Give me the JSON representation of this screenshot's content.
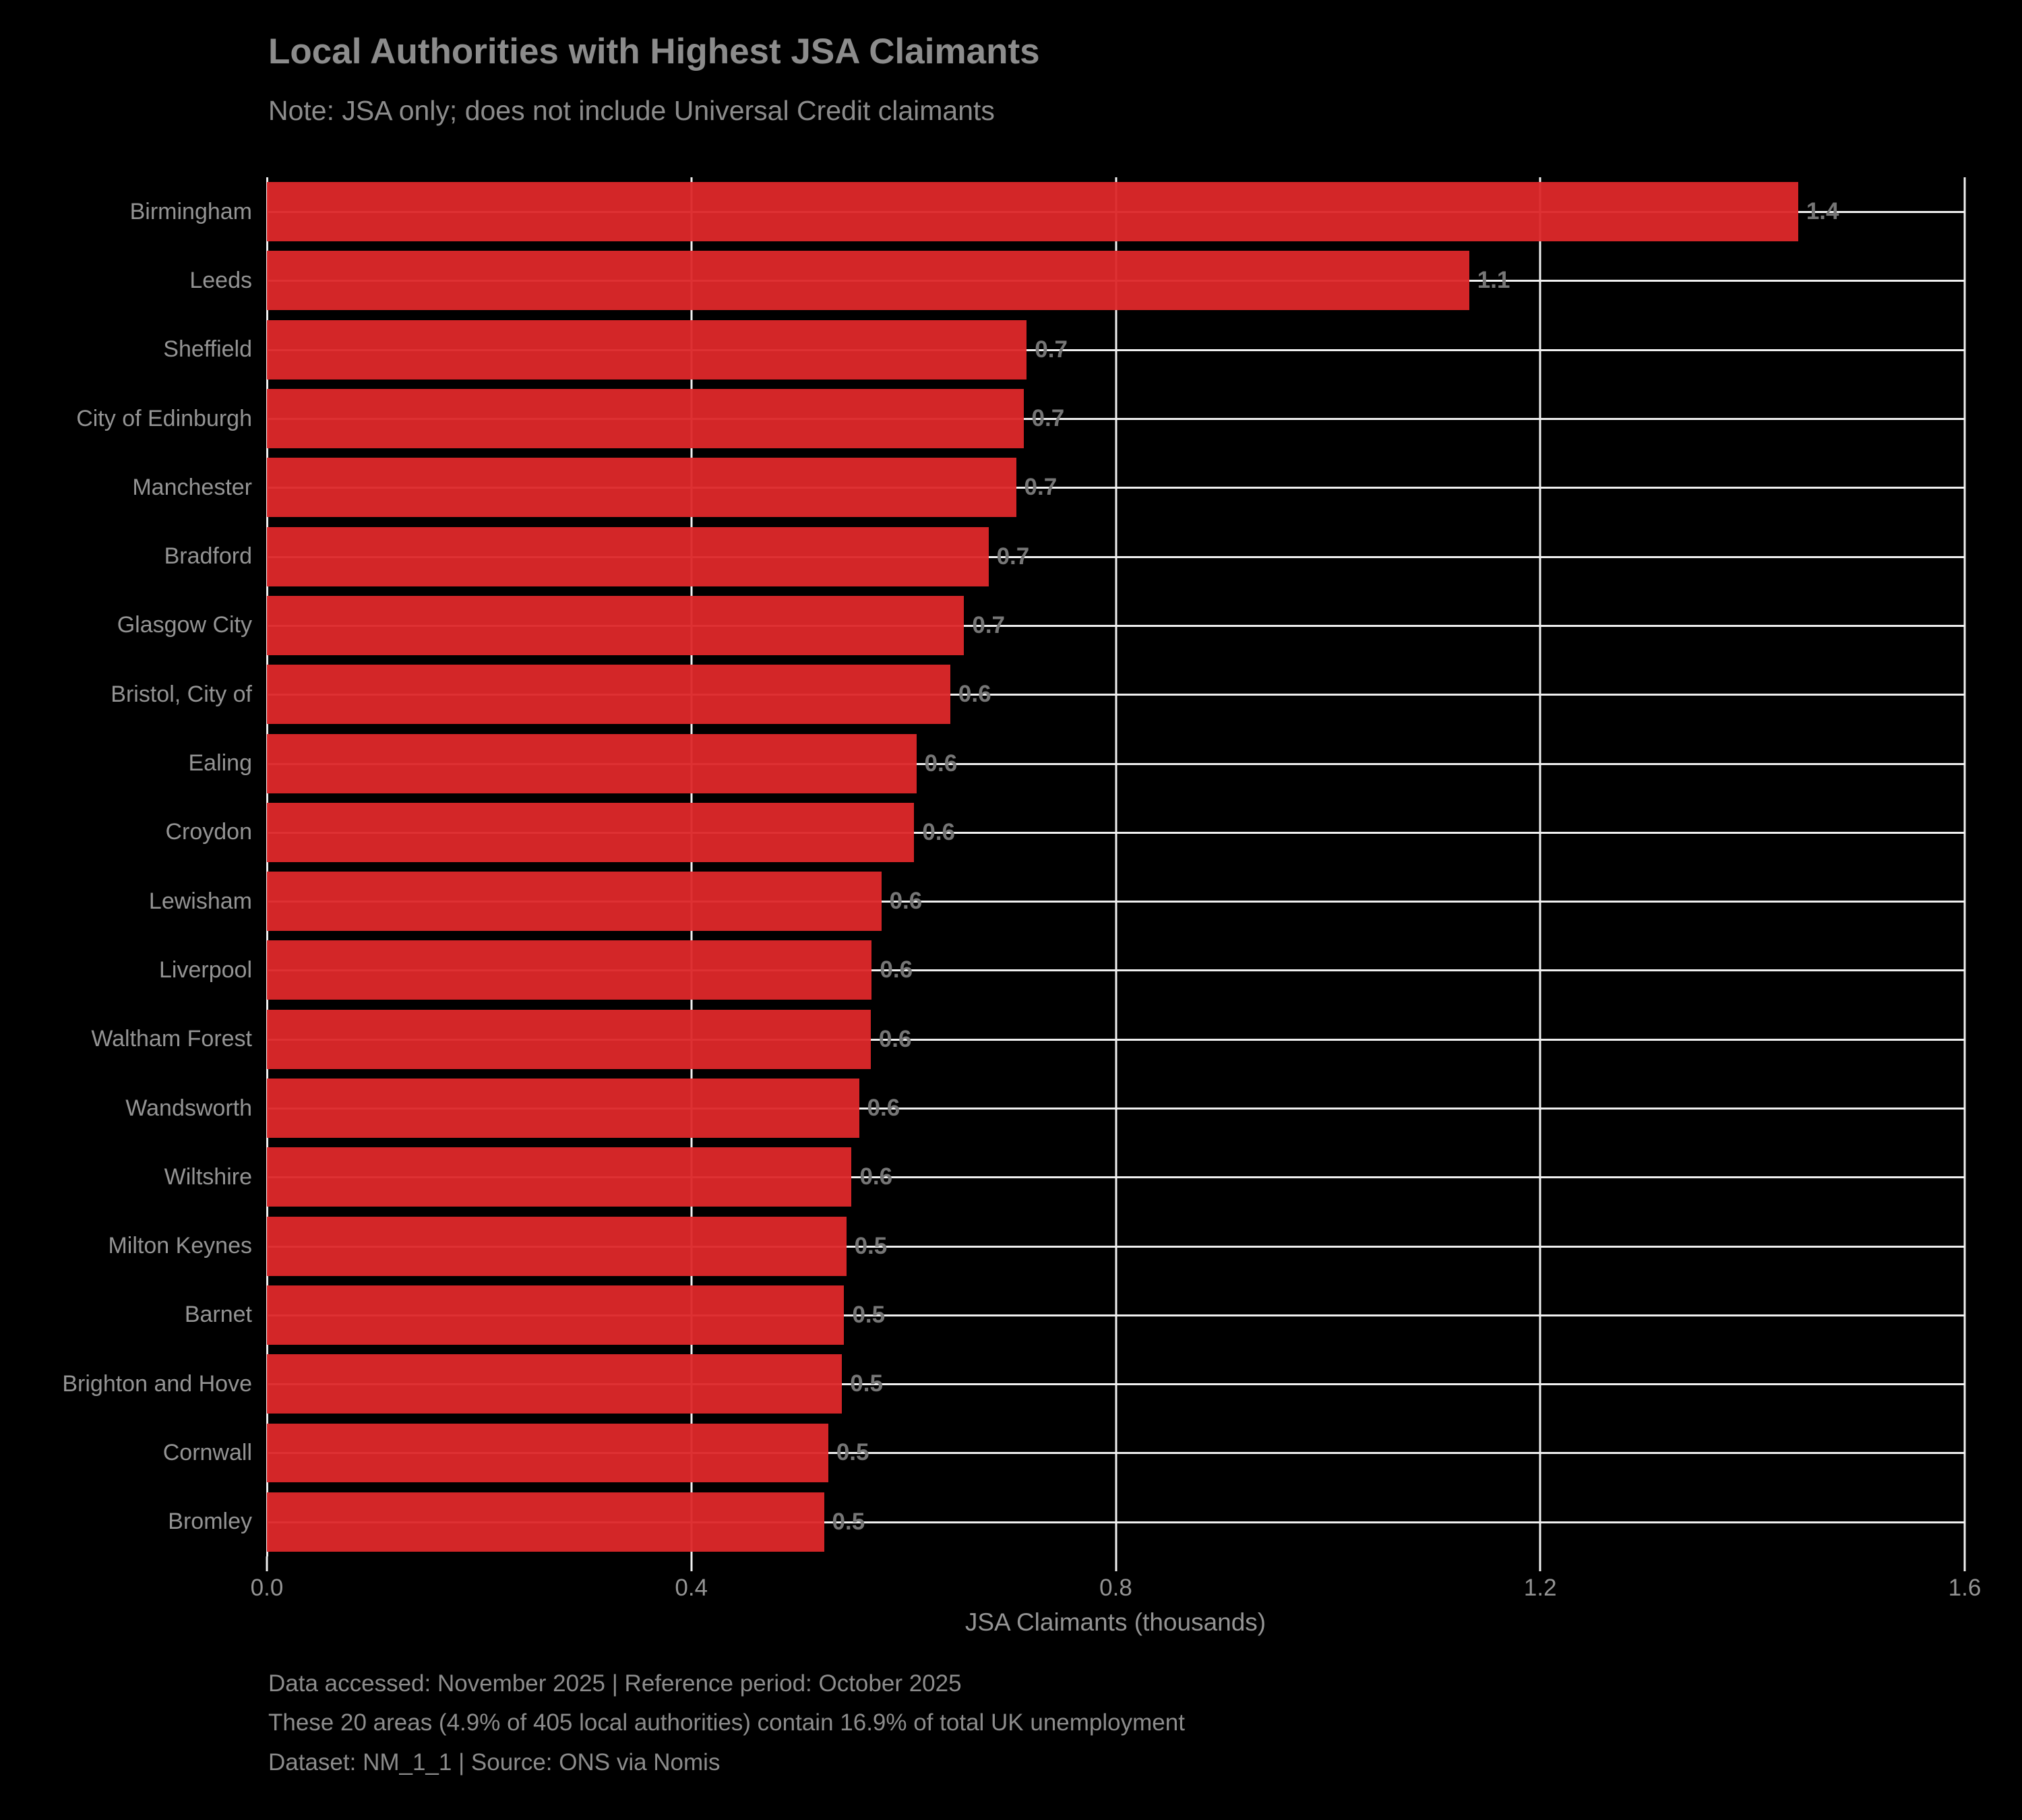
{
  "title": "Local Authorities with Highest JSA Claimants",
  "subtitle": "Note: JSA only; does not include Universal Credit claimants",
  "colors": {
    "background": "#000000",
    "bar": "#dd282a",
    "grid": "#f0f0f0",
    "text_primary": "#8c8c8c",
    "text_labels": "#949494",
    "text_value": "#767676"
  },
  "chart_data": {
    "type": "bar",
    "orientation": "horizontal",
    "title": "Local Authorities with Highest JSA Claimants",
    "subtitle": "Note: JSA only; does not include Universal Credit claimants",
    "xlabel": "JSA Claimants (thousands)",
    "ylabel": "",
    "xlim": [
      0,
      1.6
    ],
    "grid": "on",
    "categories": [
      "Birmingham",
      "Leeds",
      "Sheffield",
      "City of Edinburgh",
      "Manchester",
      "Bradford",
      "Glasgow City",
      "Bristol, City of",
      "Ealing",
      "Croydon",
      "Lewisham",
      "Liverpool",
      "Waltham Forest",
      "Wandsworth",
      "Wiltshire",
      "Milton Keynes",
      "Barnet",
      "Brighton and Hove",
      "Cornwall",
      "Bromley"
    ],
    "values": [
      1.443,
      1.133,
      0.716,
      0.713,
      0.706,
      0.68,
      0.657,
      0.644,
      0.612,
      0.61,
      0.579,
      0.57,
      0.569,
      0.558,
      0.551,
      0.546,
      0.544,
      0.542,
      0.529,
      0.525
    ],
    "bar_labels": [
      "1.4",
      "1.1",
      "0.7",
      "0.7",
      "0.7",
      "0.7",
      "0.7",
      "0.6",
      "0.6",
      "0.6",
      "0.6",
      "0.6",
      "0.6",
      "0.6",
      "0.6",
      "0.5",
      "0.5",
      "0.5",
      "0.5",
      "0.5"
    ],
    "xtick_values": [
      0,
      0.4,
      0.8,
      1.2,
      1.6
    ],
    "xtick_labels": [
      "0.0",
      "0.4",
      "0.8",
      "1.2",
      "1.6"
    ],
    "legend": "none"
  },
  "footer": {
    "line1": "Data accessed: November 2025 | Reference period: October 2025",
    "line2": "These 20 areas (4.9% of 405 local authorities) contain 16.9% of total UK unemployment",
    "line3": "Dataset: NM_1_1 | Source: ONS via Nomis"
  }
}
